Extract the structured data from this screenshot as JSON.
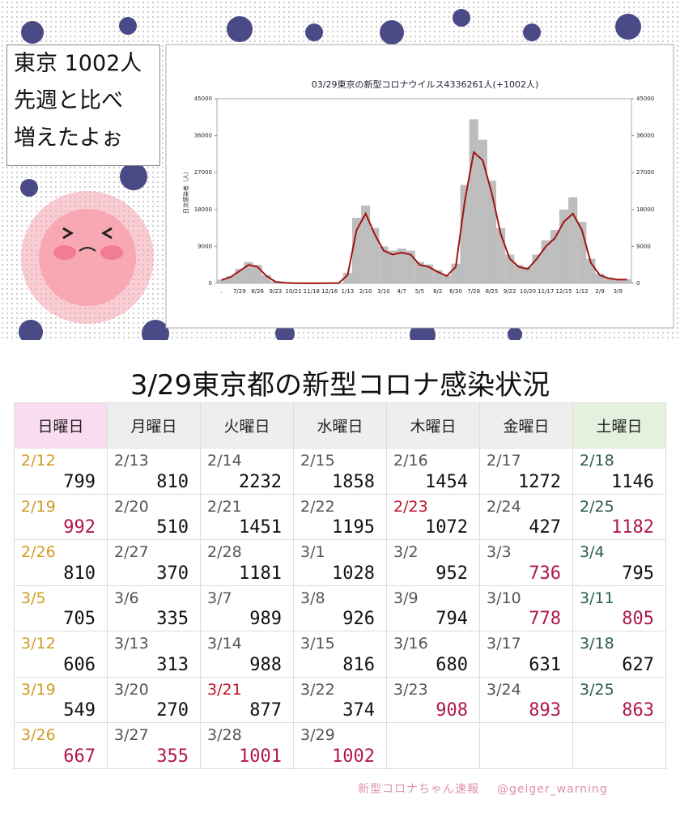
{
  "bubble": {
    "lines": [
      "東京 1002人",
      "先週と比べ",
      "増えたよぉ"
    ]
  },
  "chart_data": {
    "type": "bar",
    "title": "03/29東京の新型コロナウイルス4336261人(+1002人)",
    "y_label": "日次感染者（人）",
    "categories": [
      ".",
      null,
      "7/29",
      null,
      "8/26",
      null,
      "9/23",
      null,
      "10/21",
      null,
      "11/18",
      null,
      "12/16",
      null,
      "1/13",
      null,
      "2/10",
      null,
      "3/10",
      null,
      "4/7",
      null,
      "5/5",
      null,
      "6/2",
      null,
      "6/30",
      null,
      "7/28",
      null,
      "8/25",
      null,
      "9/22",
      null,
      "10/20",
      null,
      "11/17",
      null,
      "12/15",
      null,
      "1/12",
      null,
      "2/9",
      null,
      "3/9",
      null
    ],
    "series": [
      {
        "color": "#bdbdbd",
        "values": [
          900,
          1800,
          3500,
          5200,
          4500,
          2000,
          500,
          180,
          40,
          25,
          25,
          25,
          40,
          80,
          2600,
          16000,
          19000,
          13500,
          9000,
          8000,
          8500,
          8000,
          5200,
          4600,
          3200,
          2000,
          4800,
          24000,
          40000,
          35000,
          25000,
          13500,
          7000,
          4500,
          4000,
          7000,
          10500,
          13000,
          18000,
          21000,
          15000,
          6000,
          2300,
          1400,
          1000,
          1000
        ]
      },
      {
        "type": "line",
        "color": "#a01414",
        "values": [
          800,
          1500,
          3000,
          4500,
          4000,
          1800,
          400,
          150,
          30,
          20,
          20,
          20,
          30,
          60,
          2000,
          13000,
          17000,
          12000,
          8000,
          7000,
          7500,
          7000,
          4500,
          4000,
          2800,
          1800,
          4000,
          20000,
          32000,
          30000,
          22000,
          12000,
          6000,
          4000,
          3500,
          6000,
          9000,
          11000,
          15000,
          17000,
          13000,
          5000,
          2000,
          1200,
          900,
          900
        ]
      }
    ],
    "ylim": [
      0,
      45000
    ],
    "yticks": [
      0,
      9000,
      18000,
      27000,
      36000,
      45000
    ],
    "y2lim": [
      0,
      45000
    ],
    "y2ticks": [
      0,
      9000,
      18000,
      27000,
      36000,
      45000
    ]
  },
  "table": {
    "title": "3/29東京都の新型コロナ感染状況",
    "header": [
      "日曜日",
      "月曜日",
      "火曜日",
      "水曜日",
      "木曜日",
      "金曜日",
      "土曜日"
    ],
    "rows": [
      [
        {
          "date": "2/12",
          "count": 799
        },
        {
          "date": "2/13",
          "count": 810
        },
        {
          "date": "2/14",
          "count": 2232
        },
        {
          "date": "2/15",
          "count": 1858
        },
        {
          "date": "2/16",
          "count": 1454
        },
        {
          "date": "2/17",
          "count": 1272
        },
        {
          "date": "2/18",
          "count": 1146
        }
      ],
      [
        {
          "date": "2/19",
          "count": 992,
          "count_color": "#b0194a"
        },
        {
          "date": "2/20",
          "count": 510
        },
        {
          "date": "2/21",
          "count": 1451
        },
        {
          "date": "2/22",
          "count": 1195
        },
        {
          "date": "2/23",
          "count": 1072,
          "date_color": "#c0142a"
        },
        {
          "date": "2/24",
          "count": 427
        },
        {
          "date": "2/25",
          "count": 1182,
          "count_color": "#b0194a"
        }
      ],
      [
        {
          "date": "2/26",
          "count": 810
        },
        {
          "date": "2/27",
          "count": 370
        },
        {
          "date": "2/28",
          "count": 1181
        },
        {
          "date": "3/1",
          "count": 1028
        },
        {
          "date": "3/2",
          "count": 952
        },
        {
          "date": "3/3",
          "count": 736,
          "count_color": "#b0194a"
        },
        {
          "date": "3/4",
          "count": 795
        }
      ],
      [
        {
          "date": "3/5",
          "count": 705
        },
        {
          "date": "3/6",
          "count": 335
        },
        {
          "date": "3/7",
          "count": 989
        },
        {
          "date": "3/8",
          "count": 926
        },
        {
          "date": "3/9",
          "count": 794
        },
        {
          "date": "3/10",
          "count": 778,
          "count_color": "#b0194a"
        },
        {
          "date": "3/11",
          "count": 805,
          "count_color": "#b0194a"
        }
      ],
      [
        {
          "date": "3/12",
          "count": 606
        },
        {
          "date": "3/13",
          "count": 313
        },
        {
          "date": "3/14",
          "count": 988
        },
        {
          "date": "3/15",
          "count": 816
        },
        {
          "date": "3/16",
          "count": 680
        },
        {
          "date": "3/17",
          "count": 631
        },
        {
          "date": "3/18",
          "count": 627
        }
      ],
      [
        {
          "date": "3/19",
          "count": 549
        },
        {
          "date": "3/20",
          "count": 270
        },
        {
          "date": "3/21",
          "count": 877,
          "date_color": "#c0142a"
        },
        {
          "date": "3/22",
          "count": 374
        },
        {
          "date": "3/23",
          "count": 908,
          "count_color": "#b0194a"
        },
        {
          "date": "3/24",
          "count": 893,
          "count_color": "#b0194a"
        },
        {
          "date": "3/25",
          "count": 863,
          "count_color": "#b0194a"
        }
      ],
      [
        {
          "date": "3/26",
          "count": 667,
          "count_color": "#b0194a"
        },
        {
          "date": "3/27",
          "count": 355,
          "count_color": "#b0194a"
        },
        {
          "date": "3/28",
          "count": 1001,
          "count_color": "#b0194a"
        },
        {
          "date": "3/29",
          "count": 1002,
          "count_color": "#b0194a"
        }
      ]
    ]
  },
  "footer": {
    "brand": "新型コロナちゃん速報",
    "handle": "@geiger_warning"
  }
}
